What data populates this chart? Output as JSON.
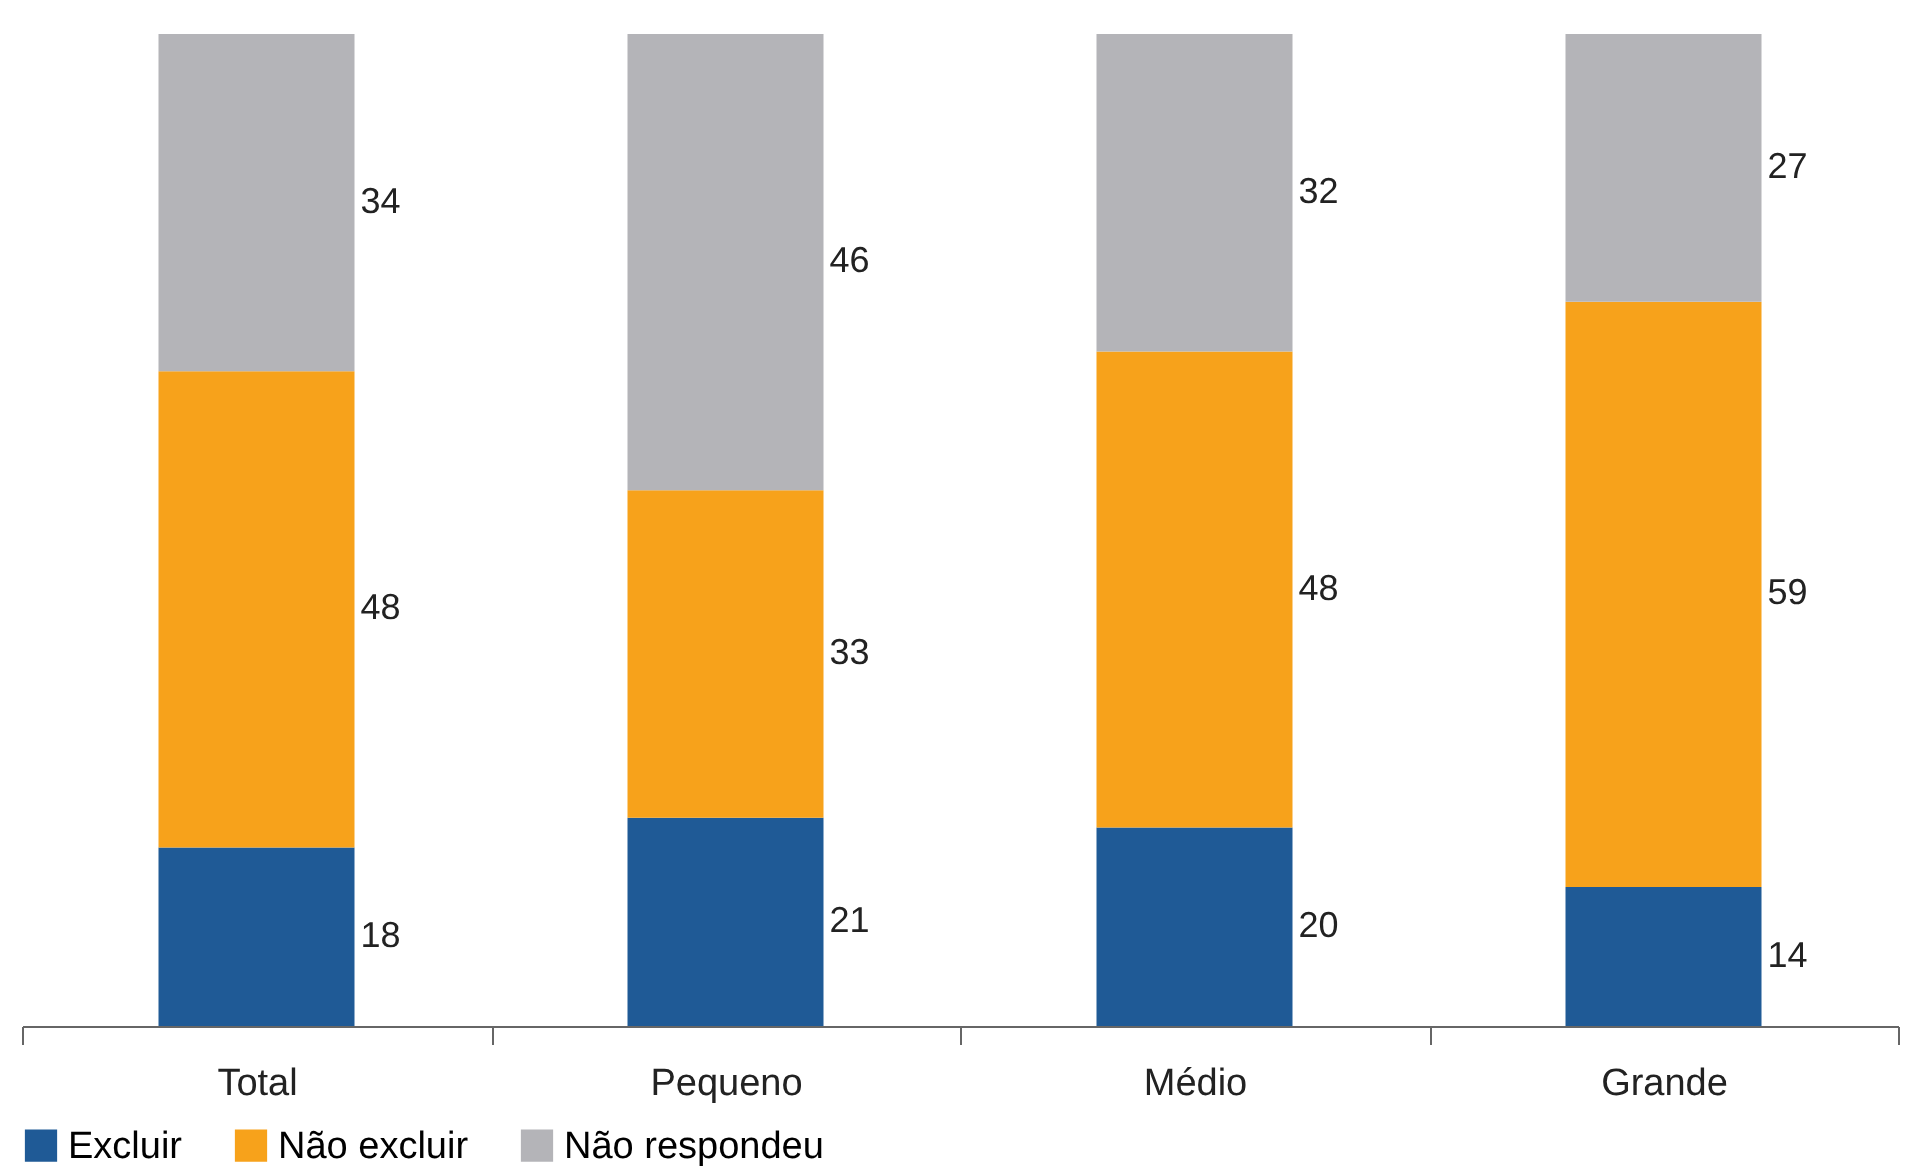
{
  "chart_data": {
    "type": "bar",
    "stacked": true,
    "categories": [
      "Total",
      "Pequeno",
      "Médio",
      "Grande"
    ],
    "series": [
      {
        "name": "Excluir",
        "color": "#1f5a96",
        "values": [
          18,
          21,
          20,
          14
        ]
      },
      {
        "name": "Não excluir",
        "color": "#f7a21b",
        "values": [
          48,
          33,
          48,
          59
        ]
      },
      {
        "name": "Não respondeu",
        "color": "#b4b4b8",
        "values": [
          34,
          46,
          32,
          27
        ]
      }
    ],
    "data_labels": true,
    "legend": "bottom",
    "grid": false
  }
}
